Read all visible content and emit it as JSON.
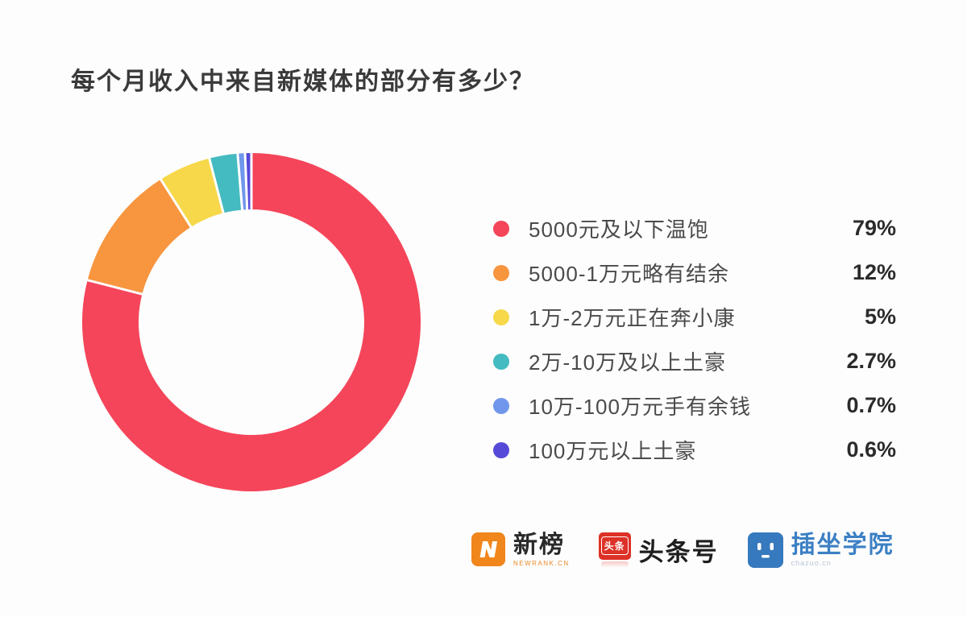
{
  "title": "每个月收入中来自新媒体的部分有多少？",
  "chart_data": {
    "type": "pie",
    "subtype": "donut",
    "title": "每个月收入中来自新媒体的部分有多少？",
    "legend_position": "right",
    "start_angle_deg": 0,
    "direction": "clockwise",
    "inner_radius_ratio": 0.67,
    "separator_color": "#ffffff",
    "segments": [
      {
        "label": "5000元及以下温饱",
        "value": 79,
        "display": "79%",
        "color": "#f5455a"
      },
      {
        "label": "5000-1万元略有结余",
        "value": 12,
        "display": "12%",
        "color": "#f8953f"
      },
      {
        "label": "1万-2万元正在奔小康",
        "value": 5,
        "display": "5%",
        "color": "#f6d84a"
      },
      {
        "label": "2万-10万及以上土豪",
        "value": 2.7,
        "display": "2.7%",
        "color": "#43bbc0"
      },
      {
        "label": "10万-100万元手有余钱",
        "value": 0.7,
        "display": "0.7%",
        "color": "#7097ec"
      },
      {
        "label": "100万元以上土豪",
        "value": 0.6,
        "display": "0.6%",
        "color": "#5649d8"
      }
    ]
  },
  "footer": {
    "newrank": {
      "name": "新榜",
      "subtext": "NEWRANK.CN",
      "icon": "newrank-bolt-icon",
      "icon_color": "#f0861c"
    },
    "toutiao": {
      "name": "头条号",
      "icon_text": "头条",
      "icon": "toutiao-icon",
      "icon_color": "#dd3127"
    },
    "chazuo": {
      "name": "插坐学院",
      "subtext": "chazuo.cn",
      "icon": "chazuo-face-icon",
      "icon_color": "#3679be"
    }
  }
}
